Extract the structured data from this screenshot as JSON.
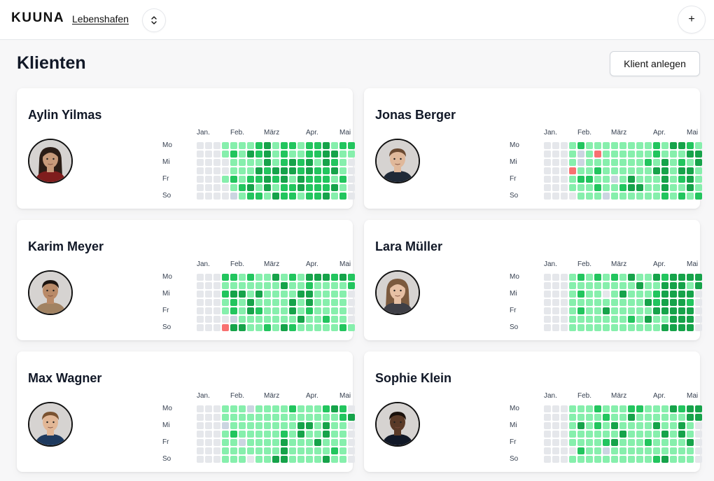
{
  "header": {
    "brand": "KUUNA",
    "org": "Lebenshafen",
    "add_label": "+"
  },
  "page": {
    "title": "Klienten",
    "create_label": "Klient anlegen"
  },
  "heatmap": {
    "months": [
      "Jan.",
      "Feb.",
      "März",
      "Apr.",
      "Mai"
    ],
    "days": [
      "Mo",
      "Mi",
      "Fr",
      "So"
    ]
  },
  "clients": [
    {
      "name": "Aylin Yilmas",
      "skin": "#c79a7a",
      "hair": "#2b1d16",
      "shirt": "#7f1d1d",
      "long_hair": true,
      "grid": [
        "0001111231221223122",
        "0001213231211223311",
        "0000111131232313210",
        "0000111323332322310",
        "0001212232313222120",
        "0000123131223222310",
        "0000b12213221223120"
      ]
    },
    {
      "name": "Jonas Berger",
      "skin": "#e0b89a",
      "hair": "#6b4a32",
      "shirt": "#1f2937",
      "long_hair": false,
      "grid": [
        "0001211111111213321",
        "0001b1r111111211133",
        "0001b111111121312131",
        "000r1121111113313310",
        "00012211b13111312313",
        "0001112112331131131",
        "0000111b11111121212"
      ]
    },
    {
      "name": "Karim Meyer",
      "skin": "#b98a68",
      "hair": "#1c1410",
      "shirt": "#a18262",
      "long_hair": false,
      "grid": [
        "0002212113121333232",
        "0001111111311211112",
        "0002331311113311110",
        "0001213111131311110",
        "0001213211131211110",
        "0000b11111113112110",
        "000r3311213211111210"
      ]
    },
    {
      "name": "Lara Müller",
      "skin": "#e7c0a4",
      "hair": "#7c5a3e",
      "shirt": "#3f3f46",
      "long_hair": true,
      "grid": [
        "0001212121311323333",
        "0001111111131133313",
        "0001211013111233330",
        "0001111111113233320",
        "0001211311111333330",
        "0001111111213113330",
        "0001111111111133330"
      ]
    },
    {
      "name": "Max Wagner",
      "skin": "#e2b796",
      "hair": "#7a5230",
      "shirt": "#1e3a5f",
      "long_hair": false,
      "grid": [
        "000111b111121112320",
        "0001111111111111123",
        "000b111111113313110",
        "0001211111213113110",
        "00011b1111311131110",
        "0001111111311111210",
        "0001110113311113110"
      ]
    },
    {
      "name": "Sophie Klein",
      "skin": "#5a3a27",
      "hair": "#1a110c",
      "shirt": "#111827",
      "long_hair": false,
      "grid": [
        "0001112111221113233",
        "0001111211311111133",
        "0001312131111311310",
        "0001111113111131310",
        "0001111231112111130",
        "0000211b11111111110",
        "0001111111111231110"
      ]
    }
  ]
}
